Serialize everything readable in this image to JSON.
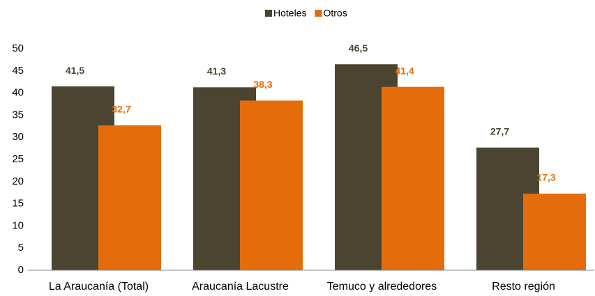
{
  "chart_data": {
    "type": "bar",
    "categories": [
      "La Araucanía (Total)",
      "Araucanía Lacustre",
      "Temuco y alrededores",
      "Resto región"
    ],
    "series": [
      {
        "name": "Hoteles",
        "color": "#4b4430",
        "label_color": "#4b4430",
        "values": [
          41.5,
          41.3,
          46.5,
          27.7
        ],
        "value_labels": [
          "41,5",
          "41,3",
          "46,5",
          "27,7"
        ]
      },
      {
        "name": "Otros",
        "color": "#e46c0a",
        "label_color": "#e46c0a",
        "values": [
          32.7,
          38.3,
          41.4,
          17.3
        ],
        "value_labels": [
          "32,7",
          "38,3",
          "41,4",
          "17,3"
        ]
      }
    ],
    "ylim": [
      0,
      50
    ],
    "yticks": [
      0,
      5,
      10,
      15,
      20,
      25,
      30,
      35,
      40,
      45,
      50
    ],
    "grid": false,
    "legend": "top"
  }
}
